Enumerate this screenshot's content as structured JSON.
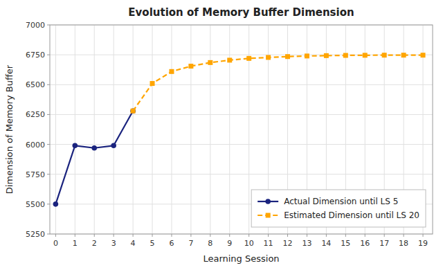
{
  "chart_data": {
    "type": "line",
    "title": "Evolution of Memory Buffer Dimension",
    "xlabel": "Learning Session",
    "ylabel": "Dimension of Memory Buffer",
    "series": [
      {
        "name": "Actual Dimension until LS 5",
        "color": "#1a237e",
        "marker": "circle",
        "line_style": "solid",
        "x": [
          0,
          1,
          2,
          3,
          4
        ],
        "values": [
          5500,
          5990,
          5970,
          5990,
          6280
        ]
      },
      {
        "name": "Estimated Dimension until LS 20",
        "color": "#FFA500",
        "marker": "square",
        "line_style": "dashed",
        "x": [
          4,
          5,
          6,
          7,
          8,
          9,
          10,
          11,
          12,
          13,
          14,
          15,
          16,
          17,
          18,
          19
        ],
        "values": [
          6280,
          6510,
          6610,
          6655,
          6685,
          6705,
          6720,
          6728,
          6735,
          6740,
          6743,
          6745,
          6746,
          6747,
          6747,
          6747
        ]
      }
    ],
    "xlim": [
      -0.3,
      19.5
    ],
    "ylim": [
      5250,
      7000
    ],
    "xticks": [
      0,
      1,
      2,
      3,
      4,
      5,
      6,
      7,
      8,
      9,
      10,
      11,
      12,
      13,
      14,
      15,
      16,
      17,
      18,
      19
    ],
    "yticks": [
      5250,
      5500,
      5750,
      6000,
      6250,
      6500,
      6750,
      7000
    ],
    "grid": true,
    "legend": "lower right"
  }
}
